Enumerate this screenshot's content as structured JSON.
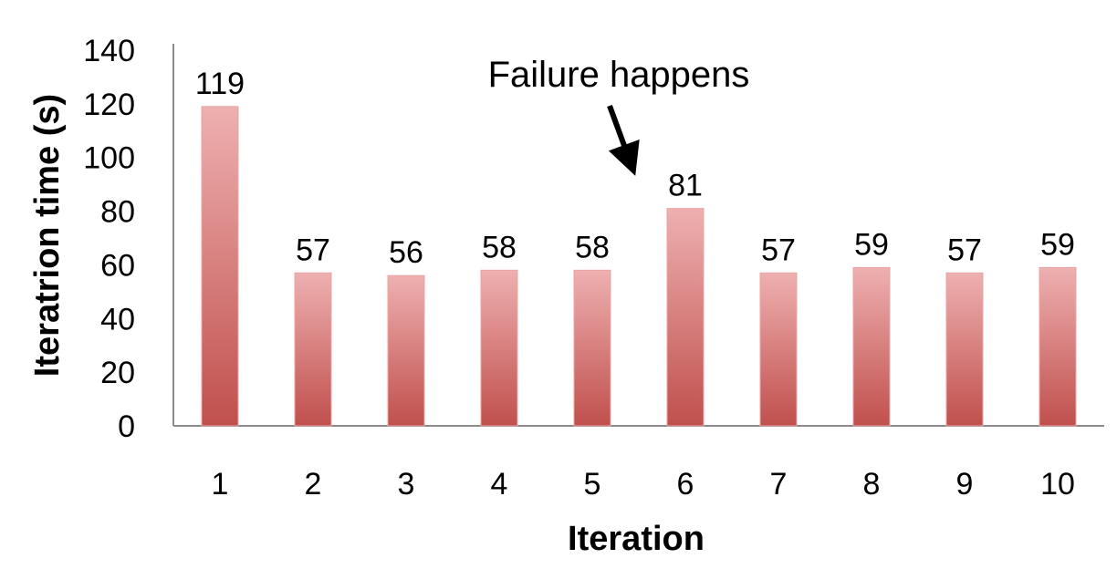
{
  "chart_data": {
    "type": "bar",
    "categories": [
      "1",
      "2",
      "3",
      "4",
      "5",
      "6",
      "7",
      "8",
      "9",
      "10"
    ],
    "values": [
      119,
      57,
      56,
      58,
      58,
      81,
      57,
      59,
      57,
      59
    ],
    "data_labels": [
      "119",
      "57",
      "56",
      "58",
      "58",
      "81",
      "57",
      "59",
      "57",
      "59"
    ],
    "title": "",
    "xlabel": "Iteration",
    "ylabel": "Iteratrion time (s)",
    "ylim": [
      0,
      140
    ],
    "yticks": [
      "0",
      "20",
      "40",
      "60",
      "80",
      "100",
      "120",
      "140"
    ],
    "grid": false,
    "legend": "none",
    "bar_color_top": "#eeb0b0",
    "bar_color_bottom": "#c0504d",
    "annotation": {
      "text": "Failure happens",
      "points_to_category": "6"
    }
  }
}
